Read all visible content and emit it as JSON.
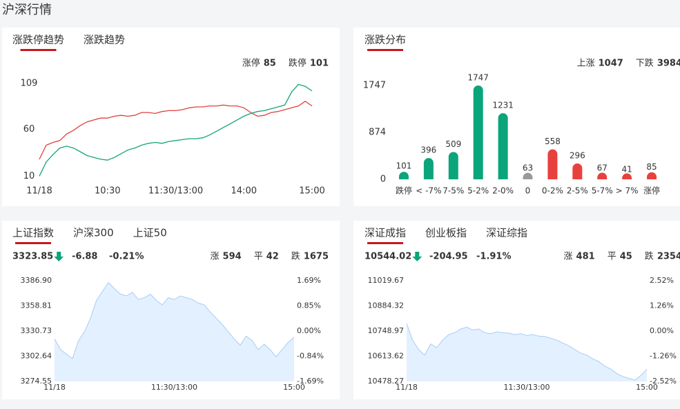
{
  "header": {
    "title": "沪深行情"
  },
  "panels": [
    {
      "tabs": [
        "涨跌停趋势",
        "涨跌趋势"
      ],
      "active": 0,
      "stats": [
        {
          "label": "涨停",
          "value": 85,
          "color": "#e8413d"
        },
        {
          "label": "跌停",
          "value": 101,
          "color": "#0aa57a"
        }
      ],
      "chart": {
        "type": "line",
        "x": [
          0,
          6,
          12,
          18,
          24,
          30,
          36,
          42,
          48,
          54,
          60,
          66,
          72,
          78,
          84,
          90,
          96,
          102,
          108,
          114,
          120,
          126,
          132,
          138,
          144,
          150,
          156,
          162,
          168,
          174,
          180,
          186,
          192,
          198,
          204,
          210,
          216,
          222,
          228,
          234,
          240
        ],
        "xlim": [
          0,
          240
        ],
        "xticks": [
          {
            "value": 0,
            "label": "11/18"
          },
          {
            "value": 60,
            "label": "10:30"
          },
          {
            "value": 120,
            "label": "11:30/13:00"
          },
          {
            "value": 180,
            "label": "14:00"
          },
          {
            "value": 240,
            "label": "15:00"
          }
        ],
        "ylim": [
          8,
          112
        ],
        "yticks": [
          10,
          60,
          109
        ],
        "series": [
          {
            "name": "涨停",
            "color": "#e0403a",
            "values": [
              28,
              43,
              46,
              48,
              55,
              59,
              64,
              68,
              70,
              72,
              72,
              74,
              75,
              74,
              75,
              78,
              78,
              77,
              79,
              80,
              80,
              81,
              83,
              84,
              84,
              85,
              85,
              86,
              85,
              85,
              83,
              78,
              74,
              75,
              78,
              79,
              81,
              83,
              85,
              90,
              85
            ]
          },
          {
            "name": "跌停",
            "color": "#13a37a",
            "values": [
              10,
              25,
              33,
              40,
              42,
              40,
              36,
              32,
              30,
              28,
              27,
              30,
              34,
              38,
              40,
              43,
              45,
              46,
              45,
              47,
              48,
              49,
              50,
              50,
              51,
              54,
              58,
              62,
              66,
              70,
              74,
              77,
              79,
              80,
              82,
              84,
              86,
              100,
              108,
              106,
              101
            ]
          }
        ]
      }
    },
    {
      "tabs": [
        "涨跌分布"
      ],
      "active": 0,
      "stats": [
        {
          "label": "上涨",
          "value": 1047,
          "color": "#e8413d"
        },
        {
          "label": "下跌",
          "value": 3984,
          "color": "#0aa57a"
        }
      ],
      "chart": {
        "type": "bar",
        "categories": [
          "跌停",
          "< -7%",
          "7-5%",
          "5-2%",
          "2-0%",
          "0",
          "0-2%",
          "2-5%",
          "5-7%",
          "> 7%",
          "涨停"
        ],
        "values": [
          101,
          396,
          509,
          1747,
          1231,
          63,
          558,
          296,
          67,
          41,
          85
        ],
        "colors": [
          "#0aa57a",
          "#0aa57a",
          "#0aa57a",
          "#0aa57a",
          "#0aa57a",
          "#9a9a9a",
          "#e8413d",
          "#e8413d",
          "#e8413d",
          "#e8413d",
          "#e8413d"
        ],
        "ylim": [
          0,
          1747
        ],
        "yticks": [
          0,
          874,
          1747
        ]
      }
    },
    {
      "tabs": [
        "上证指数",
        "沪深300",
        "上证50"
      ],
      "active": 0,
      "quote": {
        "price": 3323.85,
        "change": -6.88,
        "pct": {
          "value": -0.21,
          "label": "-0.21%"
        }
      },
      "stats": [
        {
          "label": "涨",
          "value": 594,
          "color": "#e8413d"
        },
        {
          "label": "平",
          "value": 42,
          "color": "#9a9a9a"
        },
        {
          "label": "跌",
          "value": 1675,
          "color": "#0aa57a"
        }
      ],
      "chart": {
        "type": "area",
        "x": [
          0,
          6,
          12,
          18,
          24,
          30,
          36,
          42,
          48,
          54,
          60,
          66,
          72,
          78,
          84,
          90,
          96,
          102,
          108,
          114,
          120,
          126,
          132,
          138,
          144,
          150,
          156,
          162,
          168,
          174,
          180,
          186,
          192,
          198,
          204,
          210,
          216,
          222,
          228,
          234,
          240
        ],
        "xlim": [
          0,
          240
        ],
        "xticks": [
          {
            "value": 0,
            "label": "11/18"
          },
          {
            "value": 120,
            "label": "11:30/13:00"
          },
          {
            "value": 240,
            "label": "15:00"
          }
        ],
        "ylim": [
          3274.55,
          3386.9
        ],
        "yticks": [
          {
            "value": 3386.9,
            "label": "3386.90"
          },
          3358.81,
          3330.73,
          3302.64,
          3274.55
        ],
        "y2lim": [
          -1.69,
          1.69
        ],
        "y2ticks": [
          {
            "value": 1.69,
            "label": "1.69%"
          },
          {
            "value": 0.85,
            "label": "0.85%"
          },
          {
            "value": 0,
            "label": "0.00%"
          },
          {
            "value": -0.84,
            "label": "-0.84%"
          },
          {
            "value": -1.69,
            "label": "-1.69%"
          }
        ],
        "series": [
          {
            "color": "#a8cdf2",
            "fill": "#e3f0ff",
            "values": [
              3322,
              3310,
              3305,
              3300,
              3320,
              3330,
              3345,
              3365,
              3375,
              3385,
              3378,
              3372,
              3370,
              3374,
              3366,
              3368,
              3372,
              3365,
              3360,
              3368,
              3366,
              3370,
              3368,
              3366,
              3362,
              3360,
              3352,
              3345,
              3338,
              3330,
              3322,
              3315,
              3325,
              3320,
              3310,
              3316,
              3310,
              3302,
              3310,
              3318,
              3323.85
            ]
          }
        ]
      }
    },
    {
      "tabs": [
        "深证成指",
        "创业板指",
        "深证综指"
      ],
      "active": 0,
      "quote": {
        "price": 10544.02,
        "change": -204.95,
        "pct": {
          "value": -1.91,
          "label": "-1.91%"
        }
      },
      "stats": [
        {
          "label": "涨",
          "value": 481,
          "color": "#e8413d"
        },
        {
          "label": "平",
          "value": 45,
          "color": "#9a9a9a"
        },
        {
          "label": "跌",
          "value": 2354,
          "color": "#0aa57a"
        }
      ],
      "chart": {
        "type": "area",
        "x": [
          0,
          6,
          12,
          18,
          24,
          30,
          36,
          42,
          48,
          54,
          60,
          66,
          72,
          78,
          84,
          90,
          96,
          102,
          108,
          114,
          120,
          126,
          132,
          138,
          144,
          150,
          156,
          162,
          168,
          174,
          180,
          186,
          192,
          198,
          204,
          210,
          216,
          222,
          228,
          234,
          240
        ],
        "xlim": [
          0,
          240
        ],
        "xticks": [
          {
            "value": 0,
            "label": "11/18"
          },
          {
            "value": 120,
            "label": "11:30/13:00"
          },
          {
            "value": 240,
            "label": "15:00"
          }
        ],
        "ylim": [
          10478.27,
          11019.67
        ],
        "yticks": [
          11019.67,
          10884.32,
          10748.97,
          10613.62,
          10478.27
        ],
        "y2lim": [
          -2.52,
          2.52
        ],
        "y2ticks": [
          {
            "value": 2.52,
            "label": "2.52%"
          },
          {
            "value": 1.26,
            "label": "1.26%"
          },
          {
            "value": 0,
            "label": "0.00%"
          },
          {
            "value": -1.26,
            "label": "-1.26%"
          },
          {
            "value": -2.52,
            "label": "-2.52%"
          }
        ],
        "series": [
          {
            "color": "#a8cdf2",
            "fill": "#e3f0ff",
            "values": [
              10790,
              10700,
              10650,
              10620,
              10680,
              10660,
              10700,
              10730,
              10740,
              10760,
              10770,
              10755,
              10760,
              10740,
              10735,
              10745,
              10740,
              10738,
              10730,
              10735,
              10725,
              10730,
              10722,
              10720,
              10710,
              10700,
              10685,
              10670,
              10650,
              10630,
              10620,
              10600,
              10585,
              10560,
              10545,
              10520,
              10505,
              10495,
              10485,
              10510,
              10544.02
            ]
          }
        ]
      }
    }
  ]
}
